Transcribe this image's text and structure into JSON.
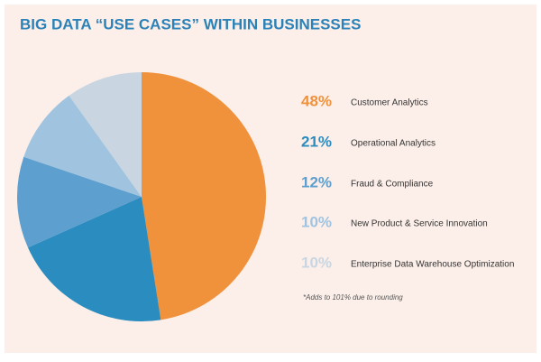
{
  "chart_data": {
    "type": "pie",
    "title": "BIG DATA “USE CASES” WITHIN BUSINESSES",
    "categories": [
      "Customer Analytics",
      "Operational Analytics",
      "Fraud & Compliance",
      "New Product & Service Innovation",
      "Enterprise Data Warehouse Optimization"
    ],
    "values": [
      48,
      21,
      12,
      10,
      10
    ],
    "value_labels": [
      "48%",
      "21%",
      "12%",
      "10%",
      "10%"
    ],
    "colors": [
      "#f0913c",
      "#2b8cc0",
      "#5d9fce",
      "#a0c3df",
      "#c9d6e2"
    ],
    "note": "*Adds to 101% due to rounding"
  }
}
